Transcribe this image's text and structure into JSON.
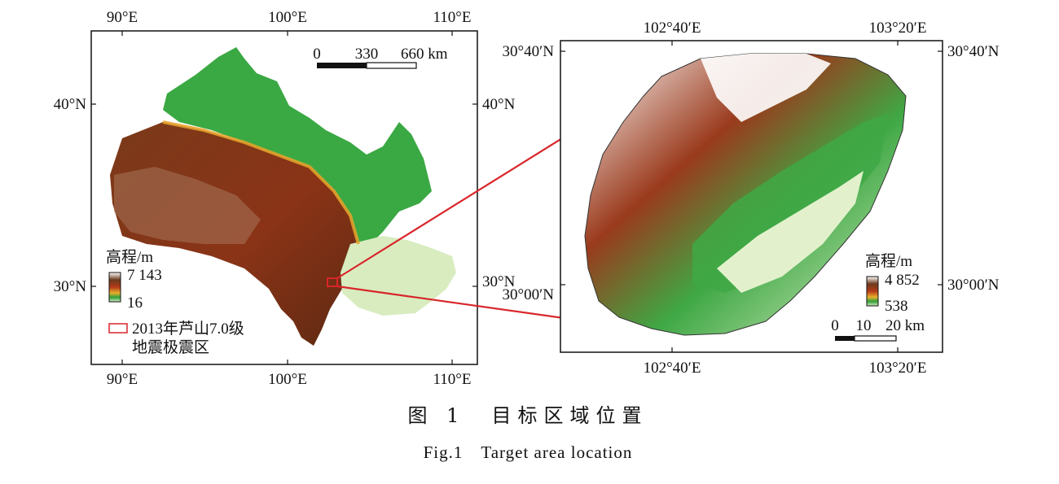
{
  "left_map": {
    "top_ticks": [
      "90°E",
      "100°E",
      "110°E"
    ],
    "bottom_ticks": [
      "90°E",
      "100°E",
      "110°E"
    ],
    "left_ticks": [
      "40°N",
      "30°N"
    ],
    "right_ticks": [
      "40°N",
      "30°N"
    ],
    "scale_bar": {
      "labels": [
        "0",
        "330",
        "660 km"
      ]
    },
    "elevation_legend": {
      "title": "高程/m",
      "max": "7 143",
      "min": "16"
    },
    "epicenter_legend": {
      "line1": "2013年芦山7.0级",
      "line2": "地震极震区",
      "color": "#d9262b"
    }
  },
  "right_map": {
    "top_ticks": [
      "102°40′E",
      "103°20′E"
    ],
    "bottom_ticks": [
      "102°40′E",
      "103°20′E"
    ],
    "left_ticks": [
      "30°40′N",
      "30°00′N"
    ],
    "right_ticks": [
      "30°40′N",
      "30°00′N"
    ],
    "scale_bar": {
      "labels": [
        "0",
        "10",
        "20 km"
      ]
    },
    "elevation_legend": {
      "title": "高程/m",
      "max": "4 852",
      "min": "538"
    }
  },
  "caption": {
    "chinese": "图 1　目标区域位置",
    "english": "Fig.1　Target area location"
  },
  "colors": {
    "connector": "#d9262b",
    "high": "#5a2a10",
    "mid": "#b5391a",
    "low": "#2fa03c",
    "lowest": "#d8ecc0"
  }
}
